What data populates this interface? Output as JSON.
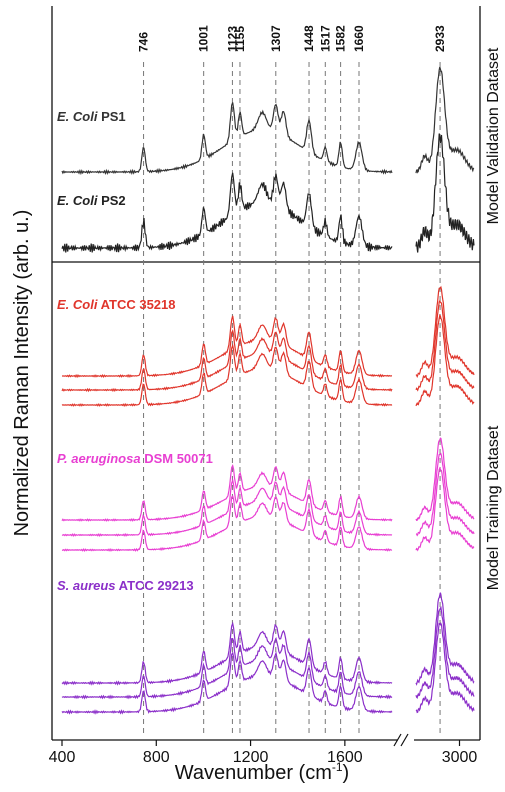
{
  "chart_data": {
    "type": "line",
    "title": "",
    "xlabel": "Wavenumber (cm",
    "xlabel_sup": "-1",
    "xlabel_close": ")",
    "ylabel": "Normalized Raman Intensity (arb. u.)",
    "x_ticks": [
      "400",
      "800",
      "1200",
      "1600",
      "3000"
    ],
    "x_ranges": [
      [
        400,
        1800
      ],
      [
        2850,
        3050
      ]
    ],
    "axis_break": true,
    "grid": false,
    "peaks": [
      "746",
      "1001",
      "1123",
      "1155",
      "1307",
      "1448",
      "1517",
      "1582",
      "1660",
      "2933"
    ],
    "panels": [
      {
        "name": "Model Validation Dataset",
        "groups": [
          {
            "italic": "E. Coli",
            "rest": " PS1",
            "color": "#333333",
            "lines": 1
          },
          {
            "italic": "E. Coli",
            "rest": " PS2",
            "color": "#222222",
            "lines": 1
          }
        ]
      },
      {
        "name": "Model Training Dataset",
        "groups": [
          {
            "italic": "E. Coli",
            "rest": " ATCC 35218",
            "color": "#e0352b",
            "lines": 3
          },
          {
            "italic": "P. aeruginosa",
            "rest": " DSM 50071",
            "color": "#e83fd2",
            "lines": 3
          },
          {
            "italic": "S. aureus",
            "rest": " ATCC 29213",
            "color": "#8b2fc9",
            "lines": 3
          }
        ]
      }
    ]
  }
}
